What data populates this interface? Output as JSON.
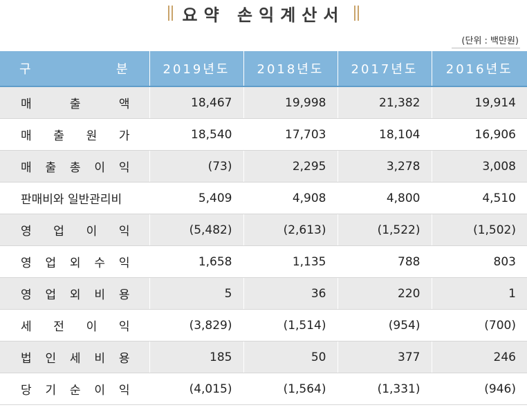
{
  "title": "요약 손익계산서",
  "unit": "(단위 : 백만원)",
  "header": {
    "label": [
      "구",
      "분"
    ],
    "years": [
      "2019년도",
      "2018년도",
      "2017년도",
      "2016년도"
    ]
  },
  "rows": [
    {
      "label": [
        "매",
        "출",
        "액"
      ],
      "values": [
        "18,467",
        "19,998",
        "21,382",
        "19,914"
      ]
    },
    {
      "label": [
        "매",
        "출",
        "원",
        "가"
      ],
      "values": [
        "18,540",
        "17,703",
        "18,104",
        "16,906"
      ]
    },
    {
      "label": [
        "매",
        "출",
        "총",
        "이",
        "익"
      ],
      "values": [
        "(73)",
        "2,295",
        "3,278",
        "3,008"
      ]
    },
    {
      "label": [
        "판매비와 일반관리비"
      ],
      "values": [
        "5,409",
        "4,908",
        "4,800",
        "4,510"
      ]
    },
    {
      "label": [
        "영",
        "업",
        "이",
        "익"
      ],
      "values": [
        "(5,482)",
        "(2,613)",
        "(1,522)",
        "(1,502)"
      ]
    },
    {
      "label": [
        "영",
        "업",
        "외",
        "수",
        "익"
      ],
      "values": [
        "1,658",
        "1,135",
        "788",
        "803"
      ]
    },
    {
      "label": [
        "영",
        "업",
        "외",
        "비",
        "용"
      ],
      "values": [
        "5",
        "36",
        "220",
        "1"
      ]
    },
    {
      "label": [
        "세",
        "전",
        "이",
        "익"
      ],
      "values": [
        "(3,829)",
        "(1,514)",
        "(954)",
        "(700)"
      ]
    },
    {
      "label": [
        "법",
        "인",
        "세",
        "비",
        "용"
      ],
      "values": [
        "185",
        "50",
        "377",
        "246"
      ]
    },
    {
      "label": [
        "당",
        "기",
        "순",
        "이",
        "익"
      ],
      "values": [
        "(4,015)",
        "(1,564)",
        "(1,331)",
        "(946)"
      ]
    }
  ],
  "colors": {
    "header_bg": "#82b6dc",
    "shade_row": "#eaeaea",
    "title_accent": "#c9a36a"
  }
}
